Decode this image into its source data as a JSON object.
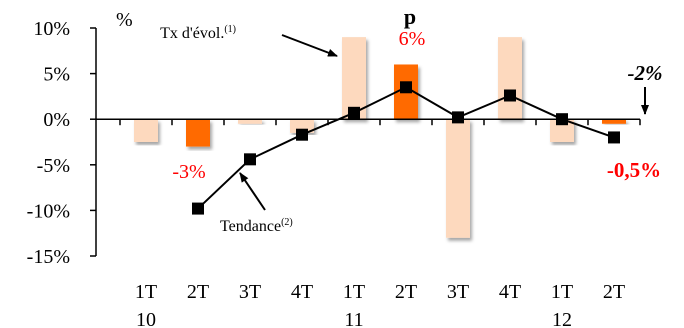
{
  "chart_data": {
    "type": "bar",
    "title": "p",
    "unit_label": "%",
    "ylim": [
      -15,
      10
    ],
    "yticks": [
      "10%",
      "5%",
      "0%",
      "-5%",
      "-10%",
      "-15%"
    ],
    "categories": [
      "1T 10",
      "2T 10",
      "3T 10",
      "4T 10",
      "1T 11",
      "2T 11",
      "3T 11",
      "4T 11",
      "1T 12",
      "2T 12"
    ],
    "tick_labels": [
      "1T",
      "2T",
      "3T",
      "4T",
      "1T",
      "2T",
      "3T",
      "4T",
      "1T",
      "2T"
    ],
    "year_labels": [
      "10",
      "11",
      "12"
    ],
    "series": [
      {
        "name": "Tx d'évol.(1)",
        "type": "bar",
        "values": [
          -2.5,
          -3.0,
          -0.5,
          -1.5,
          9.0,
          6.0,
          -13.0,
          9.0,
          -2.5,
          -0.5
        ],
        "highlight": [
          false,
          true,
          false,
          false,
          false,
          true,
          false,
          false,
          false,
          true
        ]
      },
      {
        "name": "Tendance(2)",
        "type": "line",
        "values": [
          null,
          -9.8,
          -4.4,
          -1.7,
          0.7,
          3.5,
          0.2,
          2.6,
          0.0,
          -2.0
        ]
      }
    ],
    "annotations": {
      "tx_label": "Tx d'évol.",
      "tx_sup": "(1)",
      "trend_label": "Tendance",
      "trend_sup": "(2)",
      "minus3": "-3%",
      "six": "6%",
      "minus2": "-2%",
      "minus05": "-0,5%"
    },
    "colors": {
      "bar_light": "#FDD9BE",
      "bar_highlight": "#FF6A00",
      "line": "#000000",
      "red_label": "#FF0000"
    },
    "grid": false
  }
}
